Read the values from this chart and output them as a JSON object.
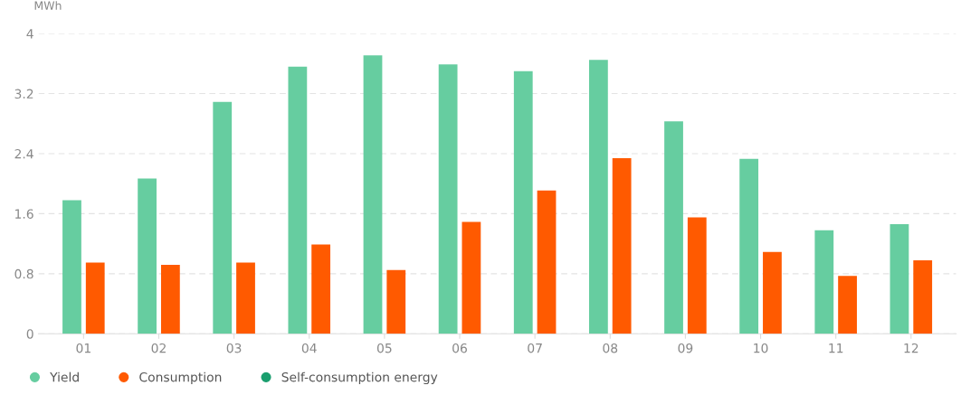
{
  "chart_data": {
    "type": "bar",
    "ylabel": "MWh",
    "categories": [
      "01",
      "02",
      "03",
      "04",
      "05",
      "06",
      "07",
      "08",
      "09",
      "10",
      "11",
      "12"
    ],
    "series": [
      {
        "name": "Yield",
        "color": "#66cda0",
        "values": [
          1.78,
          2.07,
          3.09,
          3.56,
          3.71,
          3.59,
          3.5,
          3.65,
          2.83,
          2.33,
          1.38,
          1.46
        ]
      },
      {
        "name": "Consumption",
        "color": "#ff5a00",
        "values": [
          0.95,
          0.92,
          0.95,
          1.19,
          0.85,
          1.49,
          1.91,
          2.34,
          1.55,
          1.09,
          0.77,
          0.98
        ]
      },
      {
        "name": "Self-consumption energy",
        "color": "#1a9e6e",
        "values": [
          null,
          null,
          null,
          null,
          null,
          null,
          null,
          null,
          null,
          null,
          null,
          null
        ]
      }
    ],
    "ylim": [
      0,
      4
    ],
    "yticks": [
      0,
      0.8,
      1.6,
      2.4,
      3.2,
      4
    ],
    "grid": "y",
    "legend": "bottom left"
  }
}
